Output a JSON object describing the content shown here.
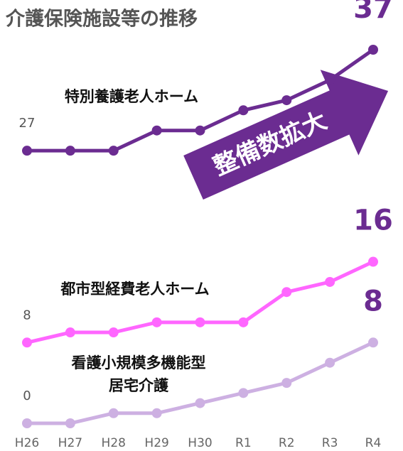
{
  "chart_data": {
    "type": "line",
    "title": "介護保険施設等の推移",
    "annotation": "整備数拡大",
    "categories": [
      "H26",
      "H27",
      "H28",
      "H29",
      "H30",
      "R1",
      "R2",
      "R3",
      "R4"
    ],
    "ylim": [
      0,
      37
    ],
    "series": [
      {
        "name": "特別養護老人ホーム",
        "color": "#6b2c91",
        "values": [
          27,
          27,
          27,
          29,
          29,
          31,
          32,
          34,
          37
        ]
      },
      {
        "name": "都市型経費老人ホーム",
        "color": "#ff66ff",
        "values": [
          8,
          9,
          9,
          10,
          10,
          10,
          13,
          14,
          16
        ]
      },
      {
        "name": "看護小規模多機能型\n居宅介護",
        "color": "#cdb0e2",
        "values": [
          0,
          0,
          1,
          1,
          2,
          3,
          4,
          6,
          8
        ]
      }
    ]
  }
}
